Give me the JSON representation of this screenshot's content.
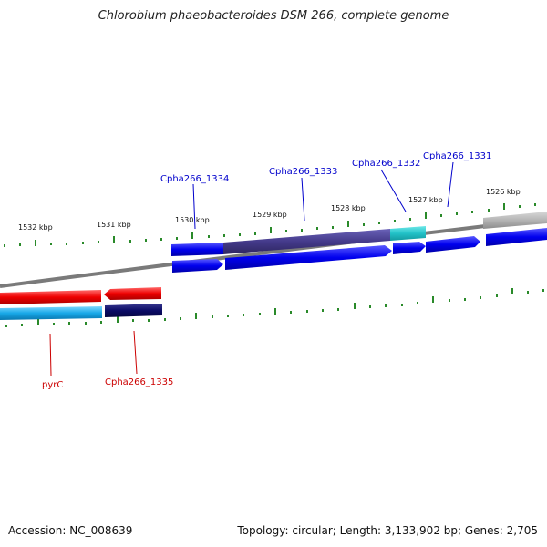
{
  "title": "Chlorobium phaeobacteroides DSM 266, complete genome",
  "footer": {
    "accession": "Accession: NC_008639",
    "summary": "Topology: circular; Length: 3,133,902 bp; Genes: 2,705"
  },
  "scale": {
    "unit": "kbp",
    "labels": [
      "1532 kbp",
      "1531 kbp",
      "1530 kbp",
      "1529 kbp",
      "1528 kbp",
      "1527 kbp",
      "1526 kbp"
    ]
  },
  "gene_labels": {
    "top": [
      "Cpha266_1334",
      "Cpha266_1333",
      "Cpha266_1332",
      "Cpha266_1331"
    ],
    "bottom": [
      "pyrC",
      "Cpha266_1335"
    ]
  },
  "colors": {
    "forward_strand": "#0000ee",
    "reverse_strand": "#ee0000",
    "top_label": "#0000cc",
    "bottom_label": "#cc0000",
    "tick": "#2a8a2a",
    "backbone": "#888888"
  }
}
